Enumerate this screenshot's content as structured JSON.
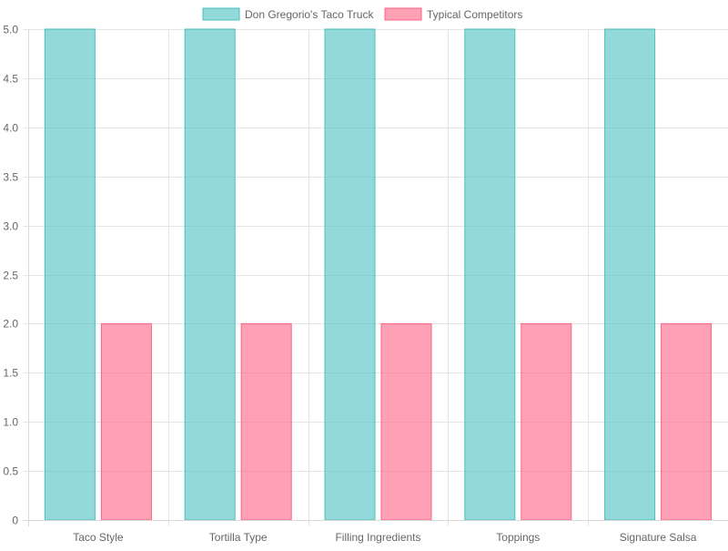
{
  "colors": {
    "series_1_fill": "rgba(75, 192, 192, 0.6)",
    "series_1_stroke": "#4bc0c0",
    "series_2_fill": "rgba(255, 99, 132, 0.6)",
    "series_2_stroke": "#ff6384"
  },
  "chart_data": {
    "type": "bar",
    "categories": [
      "Taco Style",
      "Tortilla Type",
      "Filling Ingredients",
      "Toppings",
      "Signature Salsa"
    ],
    "series": [
      {
        "name": "Don Gregorio's Taco Truck",
        "values": [
          5,
          5,
          5,
          5,
          5
        ]
      },
      {
        "name": "Typical Competitors",
        "values": [
          2,
          2,
          2,
          2,
          2
        ]
      }
    ],
    "title": "",
    "xlabel": "",
    "ylabel": "",
    "ylim": [
      0,
      5
    ],
    "yticks": [
      "0",
      "0.5",
      "1.0",
      "1.5",
      "2.0",
      "2.5",
      "3.0",
      "3.5",
      "4.0",
      "4.5",
      "5.0"
    ],
    "grid": true,
    "legend_position": "top"
  }
}
